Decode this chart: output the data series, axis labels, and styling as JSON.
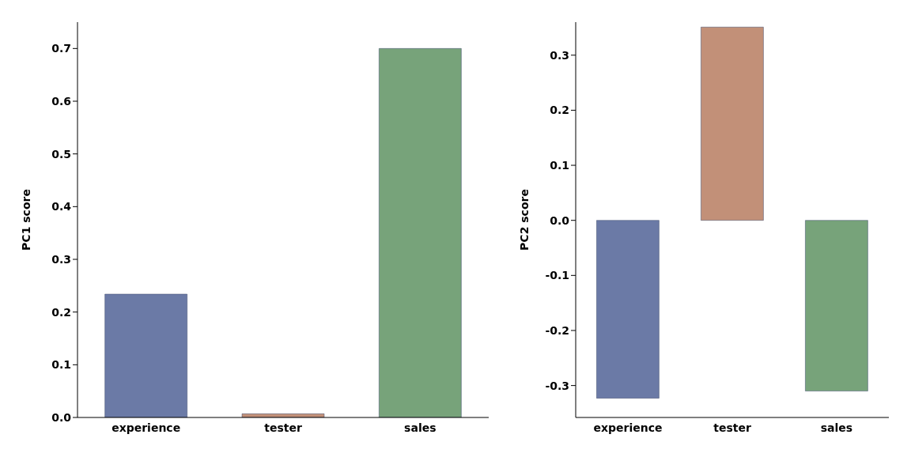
{
  "chart_data": [
    {
      "type": "bar",
      "categories": [
        "experience",
        "tester",
        "sales"
      ],
      "values": [
        0.234,
        0.007,
        0.7
      ],
      "colors": [
        "#6b7aa6",
        "#c29078",
        "#77a37a"
      ],
      "ylabel": "PC1 score",
      "ylim": [
        0,
        0.75
      ],
      "yticks": [
        {
          "value": 0,
          "label": "0.0"
        },
        0.1,
        0.2,
        0.3,
        0.4,
        0.5,
        0.6,
        0.7
      ],
      "grid": false
    },
    {
      "type": "bar",
      "categories": [
        "experience",
        "tester",
        "sales"
      ],
      "values": [
        -0.323,
        0.351,
        -0.31
      ],
      "colors": [
        "#6b7aa6",
        "#c29078",
        "#77a37a"
      ],
      "ylabel": "PC2 score",
      "ylim": [
        -0.358,
        0.36
      ],
      "yticks": [
        -0.3,
        -0.2,
        -0.1,
        {
          "value": 0,
          "label": "0.0"
        },
        0.1,
        0.2,
        0.3
      ],
      "grid": false
    }
  ]
}
